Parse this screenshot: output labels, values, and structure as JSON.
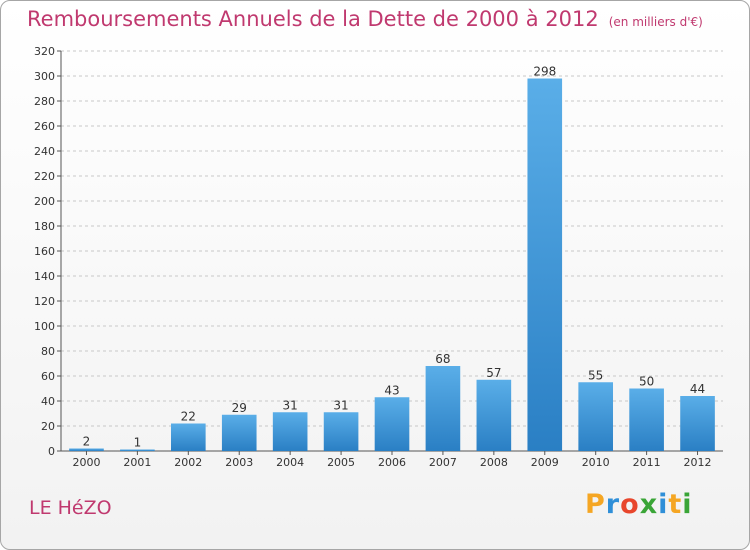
{
  "header": {
    "title": "Remboursements Annuels de la Dette de 2000 à 2012",
    "unit_note": "(en milliers d'€)"
  },
  "footer": {
    "commune": "LE HéZO",
    "logo": {
      "text": "Proxiti",
      "letters": [
        "P",
        "r",
        "o",
        "x",
        "i",
        "t",
        "i"
      ],
      "letter_colors": [
        "#f5a623",
        "#2f8fd8",
        "#e8462c",
        "#3aa537",
        "#2f8fd8",
        "#f5a623",
        "#3aa537"
      ]
    }
  },
  "colors": {
    "bar_top": "#5aaee8",
    "bar_bottom": "#2a7fc4",
    "title": "#c0396f",
    "grid": "#c8c8c8"
  },
  "chart_data": {
    "type": "bar",
    "categories": [
      "2000",
      "2001",
      "2002",
      "2003",
      "2004",
      "2005",
      "2006",
      "2007",
      "2008",
      "2009",
      "2010",
      "2011",
      "2012"
    ],
    "values": [
      2,
      1,
      22,
      29,
      31,
      31,
      43,
      68,
      57,
      298,
      55,
      50,
      44
    ],
    "data_labels": [
      "2",
      "1",
      "22",
      "29",
      "31",
      "31",
      "43",
      "68",
      "57",
      "298",
      "55",
      "50",
      "44"
    ],
    "ylim": [
      0,
      320
    ],
    "yticks": [
      0,
      20,
      40,
      60,
      80,
      100,
      120,
      140,
      160,
      180,
      200,
      220,
      240,
      260,
      280,
      300,
      320
    ],
    "grid": "horizontal dashed",
    "xlabel": "",
    "ylabel": ""
  }
}
